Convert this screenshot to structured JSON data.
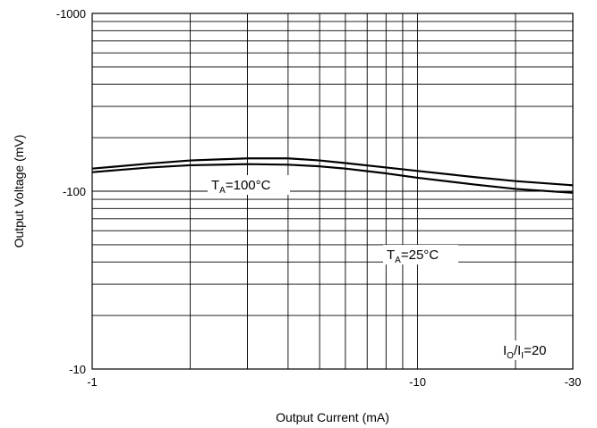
{
  "chart_data": {
    "type": "line",
    "xlabel": "Output Current (mA)",
    "ylabel": "Output Voltage (mV)",
    "x_scale": "log",
    "y_scale": "log",
    "xlim": [
      -1,
      -30
    ],
    "ylim": [
      -10,
      -1000
    ],
    "x_ticks": [
      "-1",
      "-10",
      "-30"
    ],
    "y_ticks": [
      "-10",
      "-100",
      "-1000"
    ],
    "grid": true,
    "series": [
      {
        "name": "TA=100°C",
        "label_main": "T",
        "label_sub": "A",
        "label_rest": "=100°C",
        "x": [
          -1,
          -1.5,
          -2,
          -3,
          -4,
          -5,
          -6,
          -8,
          -10,
          -15,
          -20,
          -30
        ],
        "y": [
          -128,
          -136,
          -140,
          -142,
          -141,
          -138,
          -134,
          -126,
          -119,
          -109,
          -103,
          -98
        ]
      },
      {
        "name": "TA=25°C",
        "label_main": "T",
        "label_sub": "A",
        "label_rest": "=25°C",
        "x": [
          -1,
          -1.5,
          -2,
          -3,
          -4,
          -5,
          -6,
          -8,
          -10,
          -15,
          -20,
          -30
        ],
        "y": [
          -134,
          -143,
          -149,
          -153,
          -153,
          -149,
          -144,
          -136,
          -130,
          -120,
          -114,
          -108
        ]
      }
    ],
    "annotations": [
      {
        "main1": "I",
        "sub1": "O",
        "mid": "/I",
        "sub2": "I",
        "rest": "=20"
      }
    ]
  },
  "colors": {
    "line": "#000000",
    "grid": "#000000",
    "background": "#ffffff"
  }
}
